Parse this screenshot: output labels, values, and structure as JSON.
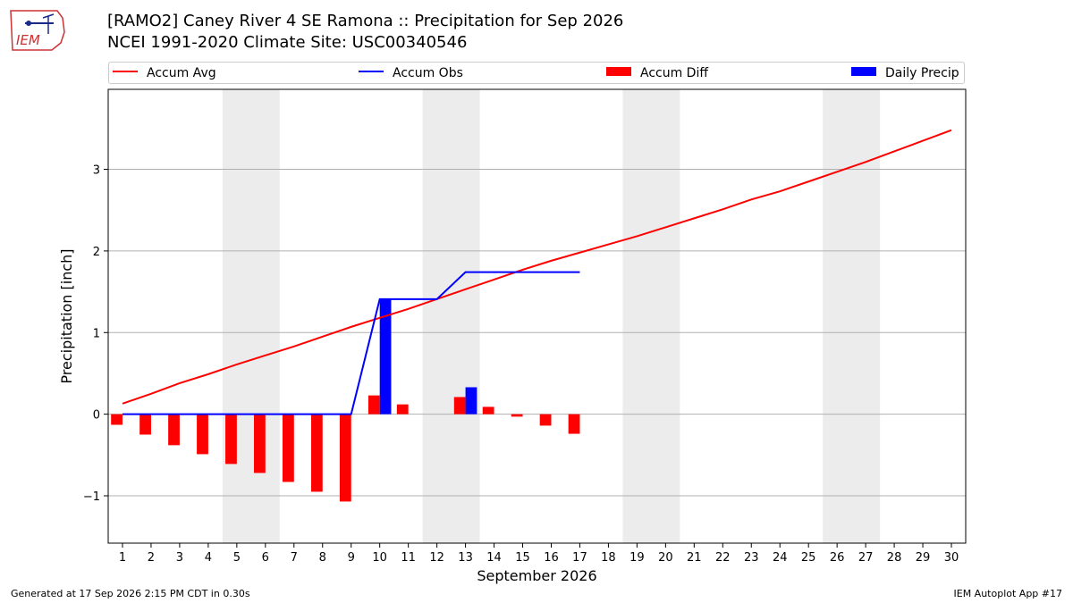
{
  "header": {
    "title_line1": "[RAMO2] Caney River 4 SE Ramona :: Precipitation for Sep 2026",
    "title_line2": "NCEI 1991-2020 Climate Site: USC00340546",
    "logo_text": "IEM"
  },
  "legend": {
    "items": [
      {
        "label": "Accum Avg",
        "kind": "line",
        "color": "#ff0000"
      },
      {
        "label": "Accum Obs",
        "kind": "line",
        "color": "#0000ff"
      },
      {
        "label": "Accum Diff",
        "kind": "box",
        "color": "#ff0000"
      },
      {
        "label": "Daily Precip",
        "kind": "box",
        "color": "#0000ff"
      }
    ]
  },
  "footer": {
    "generated": "Generated at 17 Sep 2026 2:15 PM CDT in 0.30s",
    "app": "IEM Autoplot App #17"
  },
  "chart_data": {
    "type": "bar",
    "xlabel": "September 2026",
    "ylabel": "Precipitation [inch]",
    "xlim": [
      0.5,
      30.5
    ],
    "ylim": [
      -1.58,
      3.98
    ],
    "yticks": [
      -1,
      0,
      1,
      2,
      3
    ],
    "ytick_labels": [
      "−1",
      "0",
      "1",
      "2",
      "3"
    ],
    "days": [
      1,
      2,
      3,
      4,
      5,
      6,
      7,
      8,
      9,
      10,
      11,
      12,
      13,
      14,
      15,
      16,
      17,
      18,
      19,
      20,
      21,
      22,
      23,
      24,
      25,
      26,
      27,
      28,
      29,
      30
    ],
    "weekend_shading": [
      [
        5,
        6
      ],
      [
        12,
        13
      ],
      [
        19,
        20
      ],
      [
        26,
        27
      ]
    ],
    "grid": "horizontal",
    "colors": {
      "avg": "#ff0000",
      "obs": "#0000ff",
      "diff": "#ff0000",
      "daily": "#0000ff",
      "shade": "#ececec"
    },
    "series": [
      {
        "name": "Accum Avg",
        "type": "line",
        "values": [
          0.13,
          0.25,
          0.38,
          0.49,
          0.61,
          0.72,
          0.83,
          0.95,
          1.07,
          1.18,
          1.29,
          1.41,
          1.53,
          1.65,
          1.77,
          1.88,
          1.98,
          2.08,
          2.18,
          2.29,
          2.4,
          2.51,
          2.63,
          2.73,
          2.85,
          2.97,
          3.09,
          3.22,
          3.35,
          3.48
        ]
      },
      {
        "name": "Accum Obs",
        "type": "line",
        "values": [
          0,
          0,
          0,
          0,
          0,
          0,
          0,
          0,
          0,
          1.41,
          1.41,
          1.41,
          1.74,
          1.74,
          1.74,
          1.74,
          1.74
        ]
      },
      {
        "name": "Accum Diff",
        "type": "bar",
        "values": [
          -0.13,
          -0.25,
          -0.38,
          -0.49,
          -0.61,
          -0.72,
          -0.83,
          -0.95,
          -1.07,
          0.23,
          0.12,
          0,
          0.21,
          0.09,
          -0.03,
          -0.14,
          -0.24
        ]
      },
      {
        "name": "Daily Precip",
        "type": "bar",
        "values": [
          0,
          0,
          0,
          0,
          0,
          0,
          0,
          0,
          0,
          1.41,
          0,
          0,
          0.33,
          0,
          0,
          0,
          0
        ]
      }
    ]
  }
}
